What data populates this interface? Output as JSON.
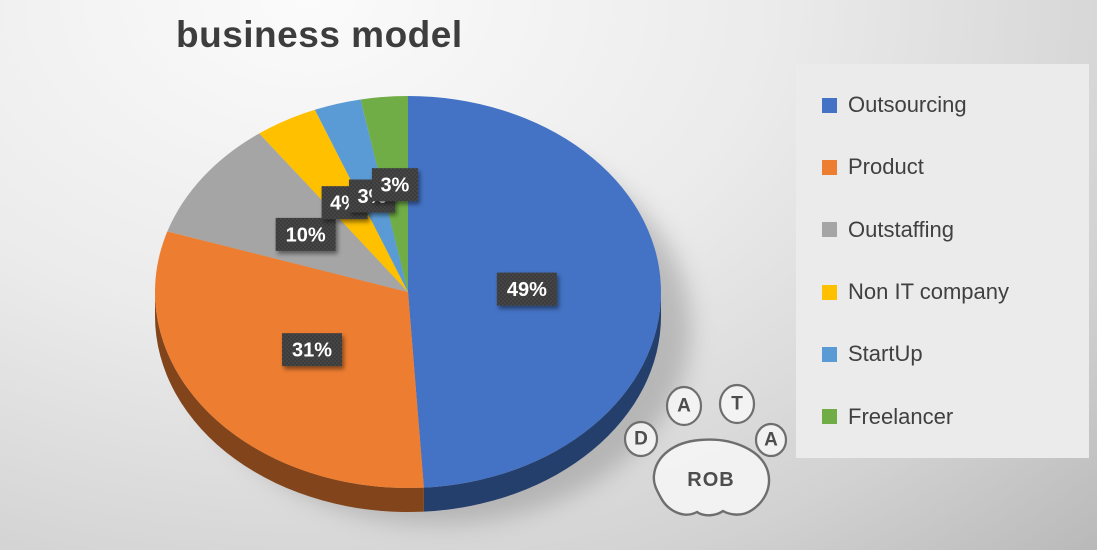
{
  "title": "business model",
  "chart_data": {
    "type": "pie",
    "style": "3d-pie",
    "title": "business model",
    "labels": [
      "Outsourcing",
      "Product",
      "Outstaffing",
      "Non IT company",
      "StartUp",
      "Freelancer"
    ],
    "values": [
      49,
      31,
      10,
      4,
      3,
      3
    ],
    "unit": "%",
    "data_labels": [
      "49%",
      "31%",
      "10%",
      "4%",
      "3%",
      "3%"
    ],
    "colors": [
      "#4472C4",
      "#ED7D31",
      "#A5A5A5",
      "#FFC000",
      "#5B9BD5",
      "#70AD47"
    ],
    "start_angle_deg": 0,
    "direction": "clockwise",
    "legend_position": "right"
  },
  "legend": {
    "items": [
      {
        "label": "Outsourcing",
        "color": "#4472C4"
      },
      {
        "label": "Product",
        "color": "#ED7D31"
      },
      {
        "label": "Outstaffing",
        "color": "#A5A5A5"
      },
      {
        "label": "Non IT company",
        "color": "#FFC000"
      },
      {
        "label": "StartUp",
        "color": "#5B9BD5"
      },
      {
        "label": "Freelancer",
        "color": "#70AD47"
      }
    ]
  },
  "watermark": {
    "letters": [
      "D",
      "A",
      "T",
      "A"
    ],
    "pad_text": "ROB"
  },
  "colors": {
    "label_box": "#454545",
    "label_text": "#FFFFFF",
    "title_color": "#3D3D3D",
    "legend_panel": "#EBEBEB"
  }
}
